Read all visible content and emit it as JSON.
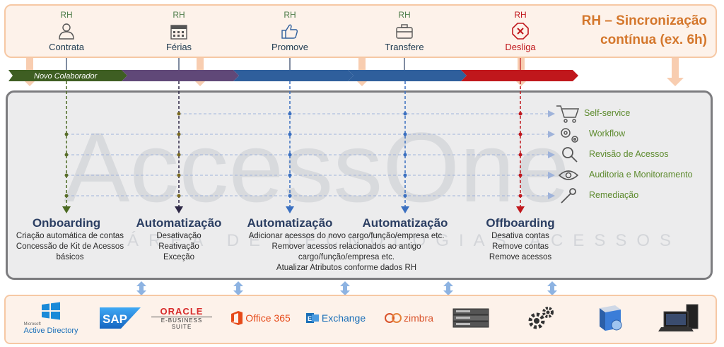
{
  "header": {
    "title_line1": "RH – Sincronização",
    "title_line2": "contínua (ex. 6h)",
    "events": [
      {
        "rh": "RH",
        "label": "Contrata",
        "icon": "user-icon"
      },
      {
        "rh": "RH",
        "label": "Férias",
        "icon": "calendar-icon"
      },
      {
        "rh": "RH",
        "label": "Promove",
        "icon": "thumbs-up-icon"
      },
      {
        "rh": "RH",
        "label": "Transfere",
        "icon": "briefcase-icon"
      },
      {
        "rh": "RH",
        "label": "Desliga",
        "icon": "stop-icon"
      }
    ]
  },
  "timeline": {
    "first_label": "Novo Colaborador",
    "colors": [
      "#3e5e22",
      "#604878",
      "#2f5f9c",
      "#2f5f9c",
      "#c0171c"
    ]
  },
  "watermark": {
    "word": "AccessOne",
    "tagline": "ÁREA DE TECNOLOGIAS ACESSOS"
  },
  "outputs": [
    {
      "label": "Self-service",
      "icon": "cart-icon"
    },
    {
      "label": "Workflow",
      "icon": "gears-icon"
    },
    {
      "label": "Revisão de Acessos",
      "icon": "magnifier-icon"
    },
    {
      "label": "Auditoria e Monitoramento",
      "icon": "eye-icon"
    },
    {
      "label": "Remediação",
      "icon": "wrench-icon"
    }
  ],
  "stages": [
    {
      "title": "Onboarding",
      "lines": [
        "Criação automática de contas",
        "Concessão de Kit de Acessos",
        "básicos"
      ]
    },
    {
      "title": "Automatização",
      "lines": [
        "Desativação",
        "Reativação",
        "Exceção"
      ]
    },
    {
      "title": "Automatização",
      "lines": [
        "Adicionar acessos do novo cargo/função/empresa etc.",
        "Remover acessos relacionados ao antigo",
        "cargo/função/empresa etc.",
        "Atualizar Atributos conforme dados RH"
      ]
    },
    {
      "title": "Automatização",
      "lines": []
    },
    {
      "title": "Offboarding",
      "lines": [
        "Desativa contas",
        "Remove contas",
        "Remove acessos"
      ]
    }
  ],
  "systems": {
    "active_directory": {
      "small": "Microsoft",
      "label": "Active Directory"
    },
    "sap": "SAP",
    "oracle": {
      "brand": "ORACLE",
      "suite": "E-BUSINESS SUITE"
    },
    "office": "Office 365",
    "exchange": "Exchange",
    "zimbra": "zimbra",
    "others": [
      "server-icon",
      "gears-icon",
      "software-box-icon",
      "workstation-icon"
    ]
  },
  "colors": {
    "accent_orange": "#d4772c",
    "rh_green": "#4f7d4b",
    "title_navy": "#2b3e62",
    "output_green": "#5e8b2f",
    "danger_red": "#c0171c"
  }
}
